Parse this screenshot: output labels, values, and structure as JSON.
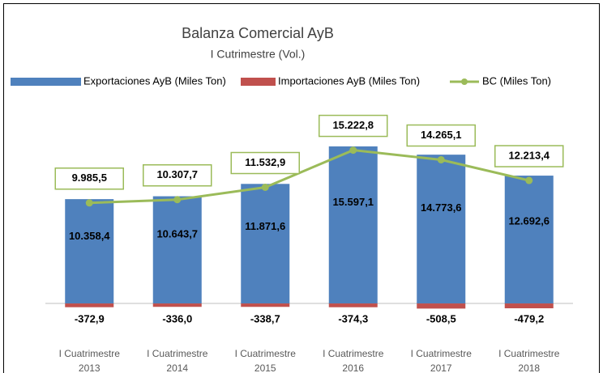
{
  "chart_data": {
    "type": "bar",
    "title": "Balanza Comercial AyB",
    "subtitle": "I Cutrimestre (Vol.)",
    "categories": [
      "I Cuatrimestre 2013",
      "I Cuatrimestre 2014",
      "I Cuatrimestre 2015",
      "I Cuatrimestre 2016",
      "I Cuatrimestre 2017",
      "I Cuatrimestre 2018"
    ],
    "ylim": [
      -1000,
      18000
    ],
    "series": [
      {
        "name": "Exportaciones AyB (Miles Ton)",
        "color": "#4f81bd",
        "type": "bar",
        "values": [
          10358.4,
          10643.7,
          11871.6,
          15597.1,
          14773.6,
          12692.6
        ],
        "value_labels": [
          "10.358,4",
          "10.643,7",
          "11.871,6",
          "15.597,1",
          "14.773,6",
          "12.692,6"
        ]
      },
      {
        "name": "Importaciones AyB (Miles Ton)",
        "color": "#c0504d",
        "type": "bar",
        "values": [
          -372.9,
          -336.0,
          -338.7,
          -374.3,
          -508.5,
          -479.2
        ],
        "value_labels": [
          "-372,9",
          "-336,0",
          "-338,7",
          "-374,3",
          "-508,5",
          "-479,2"
        ]
      },
      {
        "name": "BC (Miles Ton)",
        "color": "#9bbb59",
        "type": "line",
        "values": [
          9985.5,
          10307.7,
          11532.9,
          15222.8,
          14265.1,
          12213.4
        ],
        "value_labels": [
          "9.985,5",
          "10.307,7",
          "11.532,9",
          "15.222,8",
          "14.265,1",
          "12.213,4"
        ]
      }
    ]
  }
}
